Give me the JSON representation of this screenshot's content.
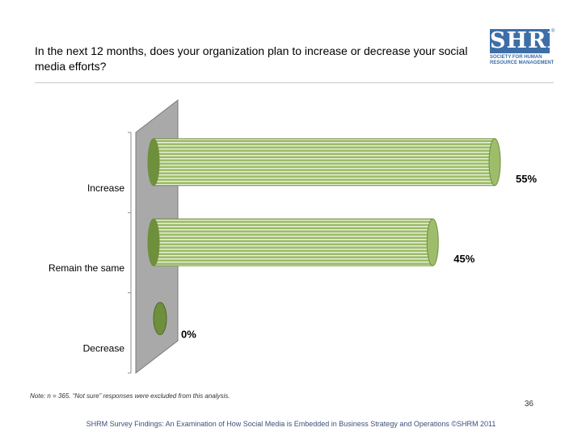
{
  "title": "In the next 12 months, does your organization plan to increase or decrease your social media efforts?",
  "logo": {
    "wordmark": "SHRM",
    "registered": "®",
    "line1": "SOCIETY FOR HUMAN",
    "line2": "RESOURCE MANAGEMENT"
  },
  "chart_data": {
    "type": "bar",
    "orientation": "horizontal",
    "categories": [
      "Increase",
      "Remain the same",
      "Decrease"
    ],
    "values": [
      55,
      45,
      0
    ],
    "value_labels": [
      "55%",
      "45%",
      "0%"
    ],
    "xlim": [
      0,
      100
    ],
    "title": "",
    "xlabel": "",
    "ylabel": "",
    "colors": {
      "bar": "#9dbd6a",
      "bar_dark": "#6e8f3c",
      "stripe": "#eef3e2",
      "wall": "#a9a9a9",
      "axis": "#8c8c8c"
    }
  },
  "note": "Note: n = 365. “Not sure” responses were excluded from this analysis.",
  "page_number": "36",
  "footer": "SHRM Survey Findings: An Examination of How Social Media is Embedded in Business Strategy and Operations ©SHRM 2011"
}
